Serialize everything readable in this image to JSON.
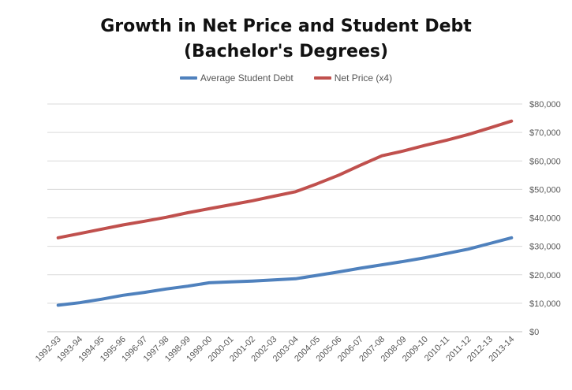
{
  "chart_data": {
    "type": "line",
    "title_line1": "Growth in Net Price and Student Debt",
    "title_line2": "(Bachelor's Degrees)",
    "categories": [
      "1992-93",
      "1993-94",
      "1994-95",
      "1995-96",
      "1996-97",
      "1997-98",
      "1998-99",
      "1999-00",
      "2000-01",
      "2001-02",
      "2002-03",
      "2003-04",
      "2004-05",
      "2005-06",
      "2006-07",
      "2007-08",
      "2008-09",
      "2009-10",
      "2010-11",
      "2011-12",
      "2012-13",
      "2013-14"
    ],
    "series": [
      {
        "name": "Average Student Debt",
        "color": "#4f81bd",
        "values": [
          9300,
          10200,
          11400,
          12800,
          13800,
          15000,
          16000,
          17200,
          17500,
          17800,
          18200,
          18600,
          19800,
          21000,
          22300,
          23500,
          24700,
          26000,
          27500,
          29000,
          31000,
          33000
        ]
      },
      {
        "name": "Net Price (x4)",
        "color": "#c0504d",
        "values": [
          33000,
          34500,
          36000,
          37500,
          38800,
          40200,
          41800,
          43200,
          44600,
          46000,
          47600,
          49200,
          52000,
          55000,
          58500,
          61800,
          63500,
          65500,
          67300,
          69300,
          71600,
          74000
        ]
      }
    ],
    "y_ticks": [
      "$0",
      "$10,000",
      "$20,000",
      "$30,000",
      "$40,000",
      "$50,000",
      "$60,000",
      "$70,000",
      "$80,000"
    ],
    "ylim": [
      0,
      80000
    ],
    "y_axis_side": "right",
    "grid": true,
    "legend_position": "top"
  }
}
